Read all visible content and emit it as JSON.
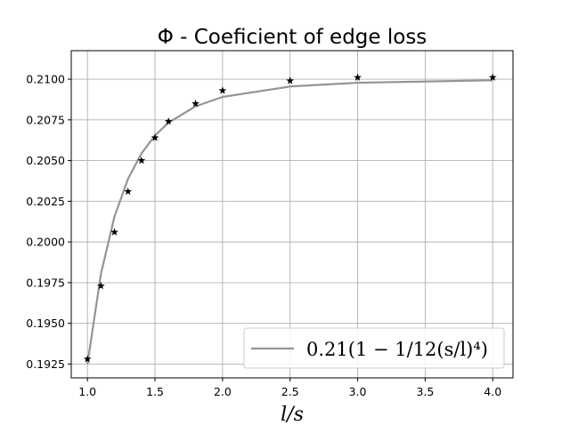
{
  "chart_data": {
    "type": "line",
    "title": "Φ - Coeficient of edge loss",
    "xlabel": "l/s",
    "ylabel": "",
    "xlim": [
      0.88,
      4.15
    ],
    "ylim": [
      0.19165,
      0.21175
    ],
    "x_ticks": [
      1.0,
      1.5,
      2.0,
      2.5,
      3.0,
      3.5,
      4.0
    ],
    "x_tick_labels": [
      "1.0",
      "1.5",
      "2.0",
      "2.5",
      "3.0",
      "3.5",
      "4.0"
    ],
    "y_ticks": [
      0.1925,
      0.195,
      0.1975,
      0.2,
      0.2025,
      0.205,
      0.2075,
      0.21
    ],
    "y_tick_labels": [
      "0.1925",
      "0.1950",
      "0.1975",
      "0.2000",
      "0.2025",
      "0.2050",
      "0.2075",
      "0.2100"
    ],
    "grid": true,
    "legend_position": "lower-right",
    "series": [
      {
        "name": "0.21(1 − 1/12(s/l)⁴)",
        "kind": "line",
        "color": "#949494",
        "x": [
          1.0,
          1.1,
          1.2,
          1.3,
          1.4,
          1.5,
          1.6,
          1.8,
          2.0,
          2.5,
          3.0,
          4.0
        ],
        "y": [
          0.1925,
          0.19805,
          0.20156,
          0.20387,
          0.20544,
          0.20654,
          0.20733,
          0.20833,
          0.20891,
          0.20955,
          0.20978,
          0.20993
        ]
      },
      {
        "name": "",
        "kind": "scatter",
        "marker": "star",
        "color": "#000000",
        "x": [
          1.0,
          1.1,
          1.2,
          1.3,
          1.4,
          1.5,
          1.6,
          1.8,
          2.0,
          2.5,
          3.0,
          4.0
        ],
        "y": [
          0.1928,
          0.1973,
          0.2006,
          0.2031,
          0.205,
          0.2064,
          0.2074,
          0.2085,
          0.2093,
          0.2099,
          0.2101,
          0.2101
        ]
      }
    ]
  }
}
